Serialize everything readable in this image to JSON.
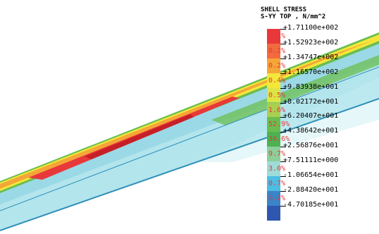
{
  "legend": {
    "title_line1": "SHELL STRESS",
    "title_line2": "S-YY TOP , N/mm^2",
    "values": [
      "+1.71100e+002",
      "+1.52923e+002",
      "+1.34747e+002",
      "+1.16570e+002",
      "+9.83938e+001",
      "+8.02172e+001",
      "+6.20407e+001",
      "+4.38642e+001",
      "+2.56876e+001",
      "+7.51111e+000",
      "-1.06654e+001",
      "-2.88420e+001",
      "-4.70185e+001"
    ],
    "percentages": [
      "0.1%",
      "0.2%",
      "0.2%",
      "0.4%",
      "0.5%",
      "1.6%",
      "52.9%",
      "30.6%",
      "9.7%",
      "3.0%",
      "0.7%",
      "0.2%"
    ],
    "colors": [
      "#e8383a",
      "#f26a3d",
      "#f5a638",
      "#f3e83a",
      "#dde545",
      "#a9cf4e",
      "#6bbd4f",
      "#4db252",
      "#8ccf9a",
      "#9edcd8",
      "#4dbde3",
      "#3a84c9",
      "#2f57b0"
    ]
  },
  "model": {
    "colors": {
      "background": "#ffffff",
      "base": "#9bd9e6",
      "light": "#c6eef2",
      "green": "#6bbd4f",
      "yellow": "#f3e83a",
      "orange": "#f5a638",
      "red": "#e8383a",
      "darkred": "#c71f27",
      "edge": "#2e8fb8"
    }
  }
}
